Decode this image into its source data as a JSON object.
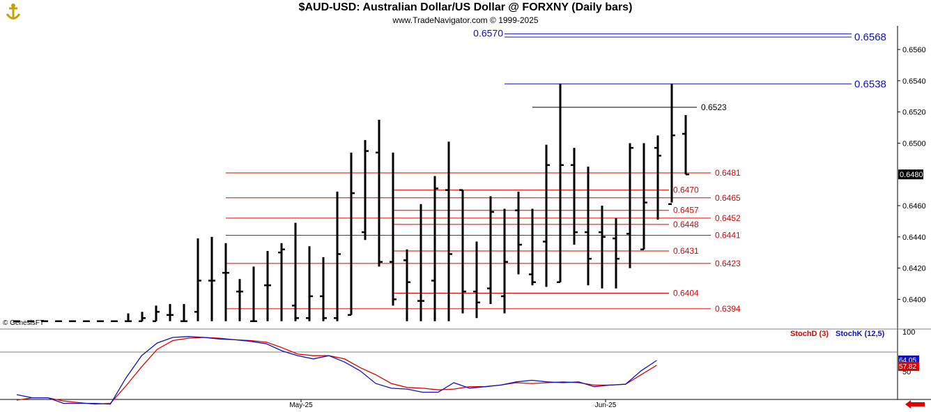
{
  "header": {
    "title": "$AUD-USD:  Australian Dollar/US Dollar @ FORXNY  (Daily bars)",
    "subtitle": "www.TradeNavigator.com © 1999-2025"
  },
  "copyright": "© GenesisFT",
  "colors": {
    "price_bar": "#000000",
    "support_line": "#e00000",
    "resistance_line": "#1010c0",
    "stoch_d": "#e00000",
    "stoch_k": "#1010c0"
  },
  "chart_data": [
    {
      "type": "ohlc",
      "title": "$AUD-USD:  Australian Dollar/US Dollar @ FORXNY  (Daily bars)",
      "y_ticks": [
        "0.6560",
        "0.6540",
        "0.6520",
        "0.6500",
        "0.6460",
        "0.6440",
        "0.6420",
        "0.6400"
      ],
      "ylim": [
        0.6386,
        0.6578
      ],
      "x_ticks": [
        {
          "label": "May-25",
          "index": 20
        },
        {
          "label": "Jun-25",
          "index": 42
        }
      ],
      "last_price": "0.6480",
      "bars": [
        {
          "h": 0.6386,
          "l": 0.6386,
          "o": 0.6386,
          "c": 0.6386
        },
        {
          "h": 0.6386,
          "l": 0.6386,
          "o": 0.6386,
          "c": 0.6386
        },
        {
          "h": 0.6386,
          "l": 0.6386,
          "o": 0.6386,
          "c": 0.6386
        },
        {
          "h": 0.6386,
          "l": 0.6386,
          "o": 0.6386,
          "c": 0.6386
        },
        {
          "h": 0.6386,
          "l": 0.6386,
          "o": 0.6386,
          "c": 0.6386
        },
        {
          "h": 0.6386,
          "l": 0.6386,
          "o": 0.6386,
          "c": 0.6386
        },
        {
          "h": 0.6386,
          "l": 0.6386,
          "o": 0.6386,
          "c": 0.6386
        },
        {
          "h": 0.6386,
          "l": 0.6386,
          "o": 0.6386,
          "c": 0.6386
        },
        {
          "h": 0.6391,
          "l": 0.6386,
          "o": 0.6386,
          "c": 0.6386
        },
        {
          "h": 0.6392,
          "l": 0.6386,
          "o": 0.6386,
          "c": 0.6388
        },
        {
          "h": 0.6396,
          "l": 0.6386,
          "o": 0.6386,
          "c": 0.6392
        },
        {
          "h": 0.6397,
          "l": 0.6386,
          "o": 0.639,
          "c": 0.639
        },
        {
          "h": 0.6397,
          "l": 0.6386,
          "o": 0.6386,
          "c": 0.6386
        },
        {
          "h": 0.6439,
          "l": 0.6386,
          "o": 0.6392,
          "c": 0.6412
        },
        {
          "h": 0.644,
          "l": 0.6386,
          "o": 0.6412,
          "c": 0.6412
        },
        {
          "h": 0.6436,
          "l": 0.6386,
          "o": 0.6417,
          "c": 0.6417
        },
        {
          "h": 0.6413,
          "l": 0.6386,
          "o": 0.6405,
          "c": 0.6405
        },
        {
          "h": 0.6421,
          "l": 0.6386,
          "o": 0.6386,
          "c": 0.6386
        },
        {
          "h": 0.6431,
          "l": 0.6386,
          "o": 0.6409,
          "c": 0.6409
        },
        {
          "h": 0.6436,
          "l": 0.6386,
          "o": 0.643,
          "c": 0.6432
        },
        {
          "h": 0.6449,
          "l": 0.6386,
          "o": 0.6396,
          "c": 0.6388
        },
        {
          "h": 0.6434,
          "l": 0.6386,
          "o": 0.6388,
          "c": 0.6402
        },
        {
          "h": 0.6427,
          "l": 0.6386,
          "o": 0.6402,
          "c": 0.6388
        },
        {
          "h": 0.6469,
          "l": 0.6386,
          "o": 0.6388,
          "c": 0.6429
        },
        {
          "h": 0.6494,
          "l": 0.639,
          "o": 0.639,
          "c": 0.6468
        },
        {
          "h": 0.6502,
          "l": 0.6438,
          "o": 0.6443,
          "c": 0.6495
        },
        {
          "h": 0.6515,
          "l": 0.6421,
          "o": 0.6494,
          "c": 0.6424
        },
        {
          "h": 0.6494,
          "l": 0.6396,
          "o": 0.6424,
          "c": 0.64
        },
        {
          "h": 0.6432,
          "l": 0.6386,
          "o": 0.6425,
          "c": 0.6411
        },
        {
          "h": 0.6461,
          "l": 0.6386,
          "o": 0.6399,
          "c": 0.6399
        },
        {
          "h": 0.6479,
          "l": 0.6386,
          "o": 0.6412,
          "c": 0.6471
        },
        {
          "h": 0.6501,
          "l": 0.6386,
          "o": 0.647,
          "c": 0.6429
        },
        {
          "h": 0.647,
          "l": 0.6391,
          "o": 0.647,
          "c": 0.6405
        },
        {
          "h": 0.6437,
          "l": 0.6388,
          "o": 0.6405,
          "c": 0.6398
        },
        {
          "h": 0.6466,
          "l": 0.6397,
          "o": 0.6407,
          "c": 0.6456
        },
        {
          "h": 0.6458,
          "l": 0.6391,
          "o": 0.6402,
          "c": 0.6424
        },
        {
          "h": 0.6469,
          "l": 0.6416,
          "o": 0.6457,
          "c": 0.6435
        },
        {
          "h": 0.6458,
          "l": 0.6409,
          "o": 0.6416,
          "c": 0.6411
        },
        {
          "h": 0.6499,
          "l": 0.6408,
          "o": 0.6437,
          "c": 0.6486
        },
        {
          "h": 0.6538,
          "l": 0.6411,
          "o": 0.6411,
          "c": 0.6486
        },
        {
          "h": 0.6497,
          "l": 0.6435,
          "o": 0.6486,
          "c": 0.6443
        },
        {
          "h": 0.6485,
          "l": 0.6409,
          "o": 0.6443,
          "c": 0.6426
        },
        {
          "h": 0.646,
          "l": 0.6407,
          "o": 0.6443,
          "c": 0.644
        },
        {
          "h": 0.6452,
          "l": 0.6407,
          "o": 0.6439,
          "c": 0.6426
        },
        {
          "h": 0.65,
          "l": 0.642,
          "o": 0.6442,
          "c": 0.6497
        },
        {
          "h": 0.65,
          "l": 0.6432,
          "o": 0.6432,
          "c": 0.6462
        },
        {
          "h": 0.6505,
          "l": 0.6451,
          "o": 0.6497,
          "c": 0.6492
        },
        {
          "h": 0.6538,
          "l": 0.6462,
          "o": 0.6461,
          "c": 0.6505
        },
        {
          "h": 0.6518,
          "l": 0.648,
          "o": 0.6506,
          "c": 0.648
        }
      ],
      "levels": [
        {
          "label": "0.6570",
          "value": 0.657,
          "color": "#1010c0",
          "label_side": "left"
        },
        {
          "label": "0.6568",
          "value": 0.6568,
          "color": "#1010c0",
          "label_side": "right"
        },
        {
          "label": "0.6538",
          "value": 0.6538,
          "color": "#1010c0",
          "label_side": "right"
        },
        {
          "label": "0.6523",
          "value": 0.6523,
          "color": "#000000",
          "label_side": "right"
        },
        {
          "label": "0.6481",
          "value": 0.6481,
          "color": "#e00000",
          "label_side": "right"
        },
        {
          "label": "0.6470",
          "value": 0.647,
          "color": "#e00000",
          "label_side": "right"
        },
        {
          "label": "0.6465",
          "value": 0.6465,
          "color": "#e00000",
          "label_side": "right"
        },
        {
          "label": "0.6457",
          "value": 0.6457,
          "color": "#e00000",
          "label_side": "right"
        },
        {
          "label": "0.6452",
          "value": 0.6452,
          "color": "#e00000",
          "label_side": "right"
        },
        {
          "label": "0.6448",
          "value": 0.6448,
          "color": "#e00000",
          "label_side": "right"
        },
        {
          "label": "0.6441",
          "value": 0.6441,
          "color": "#e00000",
          "label_side": "right"
        },
        {
          "label": "0.6431",
          "value": 0.6431,
          "color": "#e00000",
          "label_side": "right"
        },
        {
          "label": "0.6423",
          "value": 0.6423,
          "color": "#e00000",
          "label_side": "right"
        },
        {
          "label": "0.6404",
          "value": 0.6404,
          "color": "#e00000",
          "label_side": "right"
        },
        {
          "label": "0.6394",
          "value": 0.6394,
          "color": "#e00000",
          "label_side": "right"
        }
      ]
    },
    {
      "type": "line",
      "y_ticks": [
        "100",
        "50"
      ],
      "ylim": [
        0,
        100
      ],
      "legend": [
        {
          "name": "StochD (3)",
          "color": "#e00000"
        },
        {
          "name": "StochK (12,5)",
          "color": "#1010c0"
        }
      ],
      "last_values": {
        "stoch_k": "64.05",
        "stoch_d": "57.82"
      },
      "series": [
        {
          "name": "StochD (3)",
          "values": [
            14,
            17,
            17,
            13,
            11,
            9,
            10,
            32,
            56,
            78,
            89,
            92,
            93,
            92,
            90,
            89,
            87,
            80,
            72,
            70,
            70,
            66,
            55,
            46,
            35,
            30,
            29,
            27,
            28,
            31,
            31,
            33,
            36,
            35,
            36,
            37,
            36,
            33,
            33,
            34,
            46,
            58
          ]
        },
        {
          "name": "StochK (12,5)",
          "values": [
            21,
            17,
            17,
            10,
            10,
            10,
            9,
            42,
            70,
            86,
            93,
            94,
            93,
            91,
            90,
            88,
            85,
            76,
            70,
            66,
            70,
            62,
            51,
            35,
            29,
            28,
            24,
            24,
            36,
            29,
            31,
            33,
            37,
            39,
            37,
            36,
            37,
            31,
            33,
            34,
            51,
            64
          ]
        }
      ]
    }
  ]
}
